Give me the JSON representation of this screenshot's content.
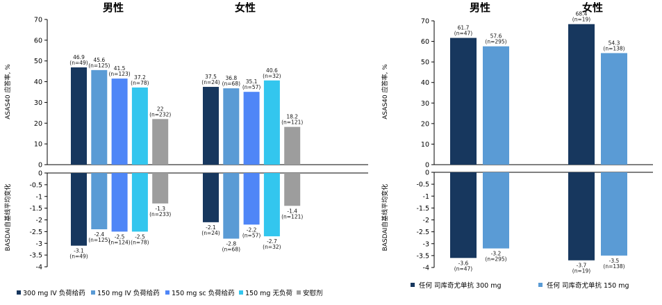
{
  "chart_data": [
    {
      "type": "bar",
      "group_titles": [
        "男性",
        "女性"
      ],
      "ylabel_top": "ASAS40 应答率, %",
      "ylabel_bottom": "BASDAI自基线平均变化",
      "ylim_top": [
        0,
        70
      ],
      "ylim_bottom": [
        -4,
        0
      ],
      "yticks_top": [
        "0",
        "10",
        "20",
        "30",
        "40",
        "50",
        "60",
        "70"
      ],
      "yticks_bottom": [
        "0",
        "-0.5",
        "-1",
        "-1.5",
        "-2",
        "-2.5",
        "-3",
        "-3.5",
        "-4"
      ],
      "series": [
        {
          "name": "300 mg IV 负荷给药",
          "color": "#17375e",
          "top": [
            {
              "value": 46.9,
              "label": "46.9",
              "n": "(n=49)"
            },
            {
              "value": 37.5,
              "label": "37.5",
              "n": "(n=24)"
            }
          ],
          "bottom": [
            {
              "value": -3.1,
              "label": "-3.1",
              "n": "(n=49)"
            },
            {
              "value": -2.1,
              "label": "-2.1",
              "n": "(n=24)"
            }
          ]
        },
        {
          "name": "150 mg IV 负荷给药",
          "color": "#5a9bd5",
          "top": [
            {
              "value": 45.6,
              "label": "45.6",
              "n": "(n=125)"
            },
            {
              "value": 36.8,
              "label": "36.8",
              "n": "(n=68)"
            }
          ],
          "bottom": [
            {
              "value": -2.4,
              "label": "-2.4",
              "n": "(n=125)"
            },
            {
              "value": -2.8,
              "label": "-2.8",
              "n": "(n=68)"
            }
          ]
        },
        {
          "name": "150 mg sc 负荷给药",
          "color": "#4f86f7",
          "top": [
            {
              "value": 41.5,
              "label": "41.5",
              "n": "(n=123)"
            },
            {
              "value": 35.1,
              "label": "35.1",
              "n": "(n=57)"
            }
          ],
          "bottom": [
            {
              "value": -2.5,
              "label": "-2.5",
              "n": "(n=124)"
            },
            {
              "value": -2.2,
              "label": "-2.2",
              "n": "(n=57)"
            }
          ]
        },
        {
          "name": "150 mg 无负荷",
          "color": "#33c6ee",
          "top": [
            {
              "value": 37.2,
              "label": "37.2",
              "n": "(n=78)"
            },
            {
              "value": 40.6,
              "label": "40.6",
              "n": "(n=32)"
            }
          ],
          "bottom": [
            {
              "value": -2.5,
              "label": "-2.5",
              "n": "(n=78)"
            },
            {
              "value": -2.7,
              "label": "-2.7",
              "n": "(n=32)"
            }
          ]
        },
        {
          "name": "安慰剂",
          "color": "#9d9d9d",
          "top": [
            {
              "value": 22,
              "label": "22",
              "n": "(n=232)"
            },
            {
              "value": 18.2,
              "label": "18.2",
              "n": "(n=121)"
            }
          ],
          "bottom": [
            {
              "value": -1.3,
              "label": "-1.3",
              "n": "(n=233)"
            },
            {
              "value": -1.4,
              "label": "-1.4",
              "n": "(n=121)"
            }
          ]
        }
      ]
    },
    {
      "type": "bar",
      "group_titles": [
        "男性",
        "女性"
      ],
      "ylabel_top": "ASAS40 应答率, %",
      "ylabel_bottom": "BASDAI自基线平均变化",
      "ylim_top": [
        0,
        70
      ],
      "ylim_bottom": [
        -4,
        0
      ],
      "yticks_top": [
        "0",
        "10",
        "20",
        "30",
        "40",
        "50",
        "60",
        "70"
      ],
      "yticks_bottom": [
        "0",
        "-0.5",
        "-1",
        "-1.5",
        "-2",
        "-2.5",
        "-3",
        "-3.5",
        "-4"
      ],
      "series": [
        {
          "name": "任何 司库奇尤单抗 300 mg",
          "color": "#17375e",
          "top": [
            {
              "value": 61.7,
              "label": "61.7",
              "n": "(n=47)"
            },
            {
              "value": 68.4,
              "label": "68.4",
              "n": "(n=19)"
            }
          ],
          "bottom": [
            {
              "value": -3.6,
              "label": "-3.6",
              "n": "(n=47)"
            },
            {
              "value": -3.7,
              "label": "-3.7",
              "n": "(n=19)"
            }
          ]
        },
        {
          "name": "任何 司库奇尤单抗 150 mg",
          "color": "#5a9bd5",
          "top": [
            {
              "value": 57.6,
              "label": "57.6",
              "n": "(n=295)"
            },
            {
              "value": 54.3,
              "label": "54.3",
              "n": "(n=138)"
            }
          ],
          "bottom": [
            {
              "value": -3.2,
              "label": "-3.2",
              "n": "(n=295)"
            },
            {
              "value": -3.5,
              "label": "-3.5",
              "n": "(n=138)"
            }
          ]
        }
      ]
    }
  ]
}
